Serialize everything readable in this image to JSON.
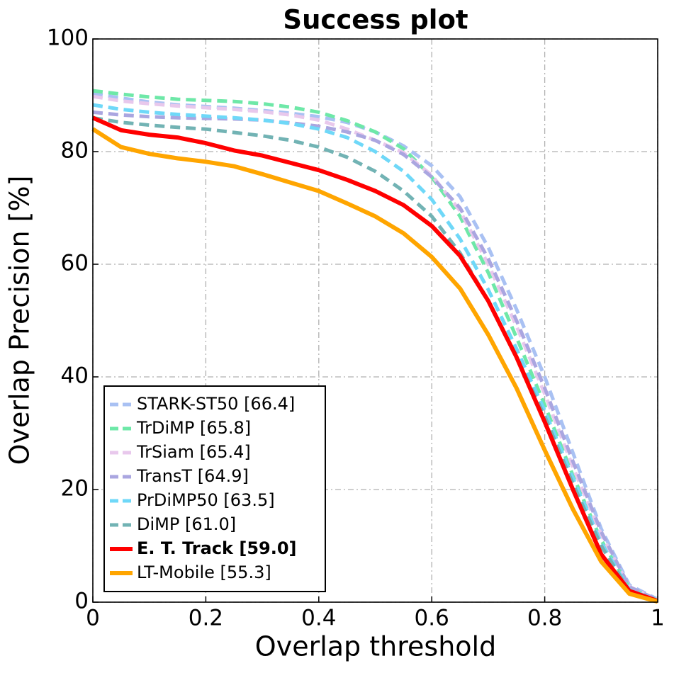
{
  "chart_data": {
    "type": "line",
    "title": "Success plot",
    "x_label": "Overlap threshold",
    "y_label": "Overlap Precision [%]",
    "x": [
      0,
      0.05,
      0.1,
      0.15,
      0.2,
      0.25,
      0.3,
      0.35,
      0.4,
      0.45,
      0.5,
      0.55,
      0.6,
      0.65,
      0.7,
      0.75,
      0.8,
      0.85,
      0.9,
      0.95,
      1
    ],
    "xlim": [
      0,
      1
    ],
    "ylim": [
      0,
      100
    ],
    "xticks": [
      0,
      0.2,
      0.4,
      0.6,
      0.8,
      1
    ],
    "yticks": [
      0,
      20,
      40,
      60,
      80,
      100
    ],
    "grid": true,
    "legend_position": "lower left",
    "series": [
      {
        "name": "STARK-ST50 [66.4]",
        "color": "#a9c1f3",
        "linestyle": "dashed",
        "values": [
          90.3,
          89.5,
          88.8,
          88.3,
          88,
          87.7,
          87.3,
          86.8,
          86.2,
          85.2,
          83.5,
          81,
          77.5,
          72,
          63,
          52,
          40,
          26.5,
          13,
          3,
          0.5
        ]
      },
      {
        "name": "TrDiMP [65.8]",
        "color": "#6ee8a8",
        "linestyle": "dashed",
        "values": [
          90.8,
          90.2,
          89.7,
          89.3,
          89.1,
          88.9,
          88.5,
          87.9,
          87,
          85.5,
          83.5,
          80.5,
          75.5,
          68.5,
          58.5,
          47,
          35,
          22.5,
          11,
          2.5,
          0.3
        ]
      },
      {
        "name": "TrSiam [65.4]",
        "color": "#e8c8ec",
        "linestyle": "dashed",
        "values": [
          89.8,
          89,
          88.5,
          88.1,
          87.8,
          87.5,
          87.1,
          86.5,
          85.6,
          84,
          82,
          79.8,
          75.8,
          69.5,
          60,
          49,
          37,
          24,
          12,
          2.7,
          0.4
        ]
      },
      {
        "name": "TransT [64.9]",
        "color": "#aaa6e0",
        "linestyle": "dashed",
        "values": [
          87,
          86.5,
          86.2,
          86,
          85.9,
          85.8,
          85.6,
          85.1,
          84.5,
          83.5,
          82,
          79.5,
          75.5,
          70,
          61,
          50,
          38,
          25,
          12.5,
          2.7,
          0.4
        ]
      },
      {
        "name": "PrDiMP50 [63.5]",
        "color": "#6fd8f8",
        "linestyle": "dashed",
        "values": [
          88.3,
          87.5,
          87,
          86.6,
          86.3,
          86,
          85.6,
          85,
          84,
          82.5,
          80,
          76.5,
          71.5,
          64.5,
          55.5,
          45,
          34,
          22,
          10.5,
          2.2,
          0.3
        ]
      },
      {
        "name": "DiMP [61.0]",
        "color": "#72b3b4",
        "linestyle": "dashed",
        "values": [
          86,
          85.2,
          84.7,
          84.3,
          84,
          83.4,
          82.8,
          82,
          80.8,
          79,
          76.5,
          73,
          68.5,
          62,
          53.5,
          43.5,
          33,
          21,
          10,
          2,
          0.3
        ]
      },
      {
        "name": "E. T. Track [59.0]",
        "color": "#ff0000",
        "linestyle": "solid",
        "font_weight": "bold",
        "values": [
          86,
          83.8,
          83,
          82.5,
          81.5,
          80.2,
          79.3,
          78,
          76.7,
          75,
          73,
          70.5,
          66.8,
          61.5,
          53.5,
          43.5,
          32,
          20,
          8.5,
          2,
          0.2
        ]
      },
      {
        "name": "LT-Mobile [55.3]",
        "color": "#ffa500",
        "linestyle": "solid",
        "values": [
          84,
          80.8,
          79.6,
          78.8,
          78.2,
          77.4,
          76,
          74.5,
          73,
          70.8,
          68.5,
          65.5,
          61.3,
          55.7,
          47.5,
          38,
          27,
          16.5,
          7.2,
          1.5,
          0.1
        ]
      }
    ]
  }
}
